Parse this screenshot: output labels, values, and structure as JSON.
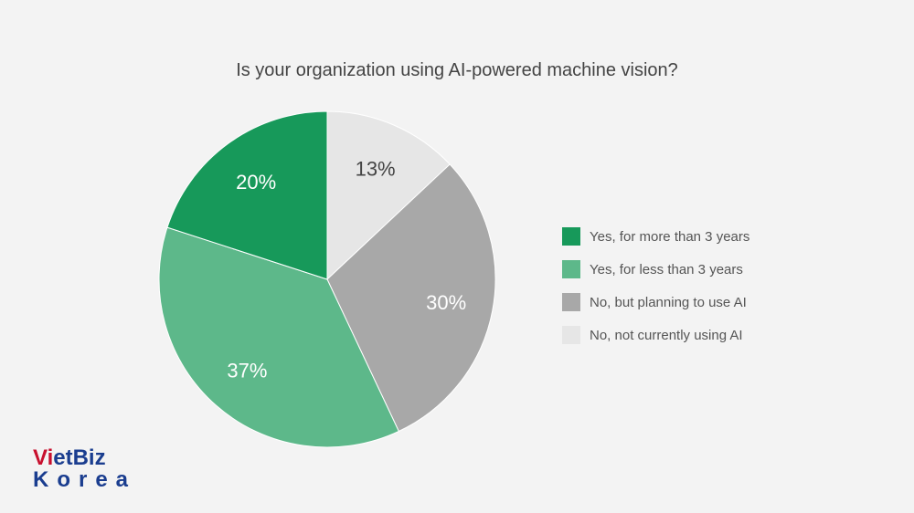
{
  "chart_data": {
    "type": "pie",
    "title": "Is your organization using AI-powered machine vision?",
    "slices": [
      {
        "name": "No, not currently using AI",
        "value": 13,
        "label": "13%",
        "color": "#e6e6e6"
      },
      {
        "name": "No, but planning to use AI",
        "value": 30,
        "label": "30%",
        "color": "#a8a8a8"
      },
      {
        "name": "Yes, for less than 3 years",
        "value": 37,
        "label": "37%",
        "color": "#5db88a"
      },
      {
        "name": "Yes, for more than 3 years",
        "value": 20,
        "label": "20%",
        "color": "#17995a"
      }
    ],
    "start_angle_deg": 0,
    "direction": "clockwise",
    "legend_position": "right",
    "legend_order": [
      "Yes, for more than 3 years",
      "Yes, for less than 3 years",
      "No, but planning to use AI",
      "No, not currently using AI"
    ]
  },
  "logo": {
    "line1a": "VietBiz",
    "line1b": "",
    "line2": "Korea"
  }
}
